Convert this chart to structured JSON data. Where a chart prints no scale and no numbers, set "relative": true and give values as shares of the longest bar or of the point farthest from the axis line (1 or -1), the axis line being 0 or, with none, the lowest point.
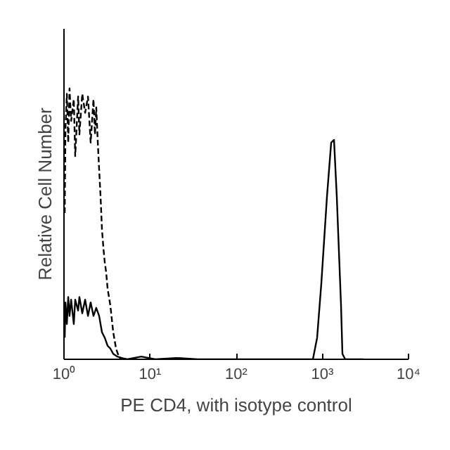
{
  "chart_data": {
    "type": "line",
    "xlabel": "PE CD4, with isotype control",
    "ylabel": "Relative Cell Number",
    "log": "x",
    "relative": true,
    "grid": false,
    "xlim": [
      1,
      10000
    ],
    "xticks": [
      {
        "value": 1,
        "label": "10⁰"
      },
      {
        "value": 10,
        "label": "10¹"
      },
      {
        "value": 100,
        "label": "10²"
      },
      {
        "value": 1000,
        "label": "10³"
      },
      {
        "value": 10000,
        "label": "10⁴"
      }
    ],
    "series": [
      {
        "color": "#000000",
        "line_style": "dashed",
        "x": [
          1.02,
          1.04,
          1.08,
          1.12,
          1.16,
          1.21,
          1.3,
          1.35,
          1.46,
          1.51,
          1.63,
          1.76,
          1.9,
          2.04,
          2.2,
          2.29,
          2.37,
          2.47,
          2.56,
          2.66,
          2.76,
          2.87,
          2.97,
          3.09,
          3.21,
          3.45,
          3.73,
          4.02,
          4.33,
          4.67
        ],
        "values": [
          0.54,
          0.85,
          0.98,
          0.8,
          1.0,
          0.88,
          0.96,
          0.75,
          0.97,
          0.83,
          0.98,
          0.91,
          0.97,
          0.8,
          0.96,
          0.83,
          0.93,
          0.8,
          0.7,
          0.6,
          0.48,
          0.41,
          0.36,
          0.32,
          0.26,
          0.2,
          0.1,
          0.04,
          0.01,
          0
        ]
      },
      {
        "color": "#000000",
        "line_style": "solid",
        "x": [
          1.02,
          1.04,
          1.08,
          1.12,
          1.16,
          1.21,
          1.3,
          1.35,
          1.46,
          1.51,
          1.63,
          1.76,
          1.9,
          2.04,
          2.2,
          2.37,
          2.56,
          2.76,
          2.97,
          3.21,
          3.45,
          3.73,
          4.17,
          4.67,
          5.43,
          7.9,
          11.5,
          20,
          35.5,
          776,
          869,
          972,
          1130,
          1265,
          1365,
          1470,
          1646,
          1709,
          1841,
          3000
        ],
        "values": [
          0.08,
          0.21,
          0.13,
          0.23,
          0.16,
          0.22,
          0.13,
          0.22,
          0.18,
          0.23,
          0.17,
          0.22,
          0.16,
          0.21,
          0.16,
          0.19,
          0.16,
          0.1,
          0.08,
          0.05,
          0.04,
          0.02,
          0.01,
          0.005,
          0,
          0.01,
          0,
          0.005,
          0,
          0,
          0.08,
          0.28,
          0.6,
          0.8,
          0.81,
          0.6,
          0.2,
          0.02,
          0,
          0
        ]
      }
    ]
  }
}
